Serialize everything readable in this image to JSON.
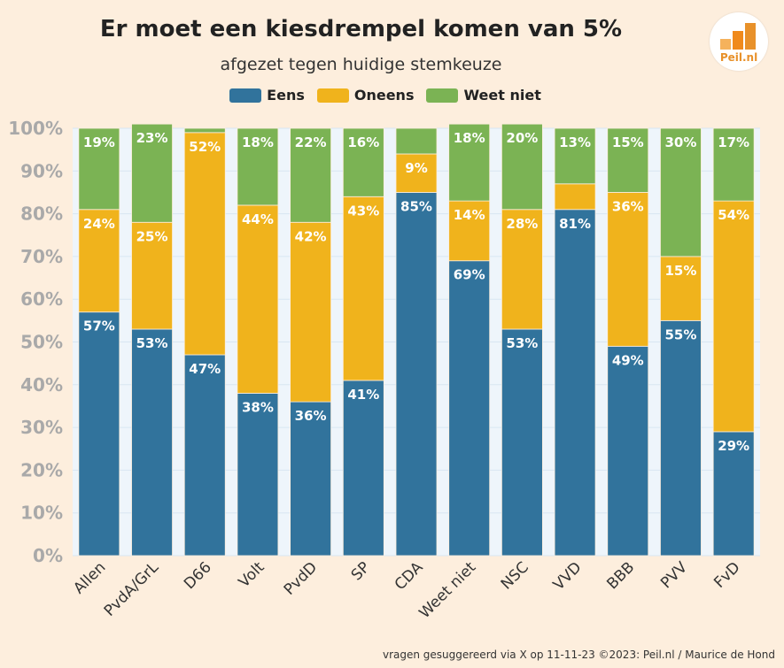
{
  "chart_data": {
    "type": "bar",
    "stacked": true,
    "title": "Er moet een kiesdrempel komen van 5%",
    "subtitle": "afgezet tegen huidige stemkeuze",
    "categories": [
      "Allen",
      "PvdA/GrL",
      "D66",
      "Volt",
      "PvdD",
      "SP",
      "CDA",
      "Weet niet",
      "NSC",
      "VVD",
      "BBB",
      "PVV",
      "FvD"
    ],
    "series": [
      {
        "name": "Eens",
        "color": "#31739c",
        "values": [
          57,
          53,
          47,
          38,
          36,
          41,
          85,
          69,
          53,
          81,
          49,
          55,
          29
        ],
        "labels": [
          "57%",
          "53%",
          "47%",
          "38%",
          "36%",
          "41%",
          "85%",
          "69%",
          "53%",
          "81%",
          "49%",
          "55%",
          "29%"
        ]
      },
      {
        "name": "Oneens",
        "color": "#f0b31c",
        "values": [
          24,
          25,
          52,
          44,
          42,
          43,
          9,
          14,
          28,
          6,
          36,
          15,
          54
        ],
        "labels": [
          "24%",
          "25%",
          "52%",
          "44%",
          "42%",
          "43%",
          "9%",
          "14%",
          "28%",
          "",
          "36%",
          "15%",
          "54%"
        ]
      },
      {
        "name": "Weet niet",
        "color": "#7bb354",
        "values": [
          19,
          23,
          1,
          18,
          22,
          16,
          6,
          18,
          20,
          13,
          15,
          30,
          17
        ],
        "labels": [
          "19%",
          "23%",
          "",
          "18%",
          "22%",
          "16%",
          "",
          "18%",
          "20%",
          "13%",
          "15%",
          "30%",
          "17%"
        ]
      }
    ],
    "ylim": [
      0,
      100
    ],
    "yticks": [
      "0%",
      "10%",
      "20%",
      "30%",
      "40%",
      "50%",
      "60%",
      "70%",
      "80%",
      "90%",
      "100%"
    ],
    "grid": true,
    "legend": "top"
  },
  "logo": {
    "text": "Peil.nl",
    "bar_colors": [
      "#f5b25c",
      "#f08a1c",
      "#e8912a"
    ]
  },
  "footer": "vragen gesuggereerd via X op 11-11-23 ©2023: Peil.nl / Maurice de Hond"
}
